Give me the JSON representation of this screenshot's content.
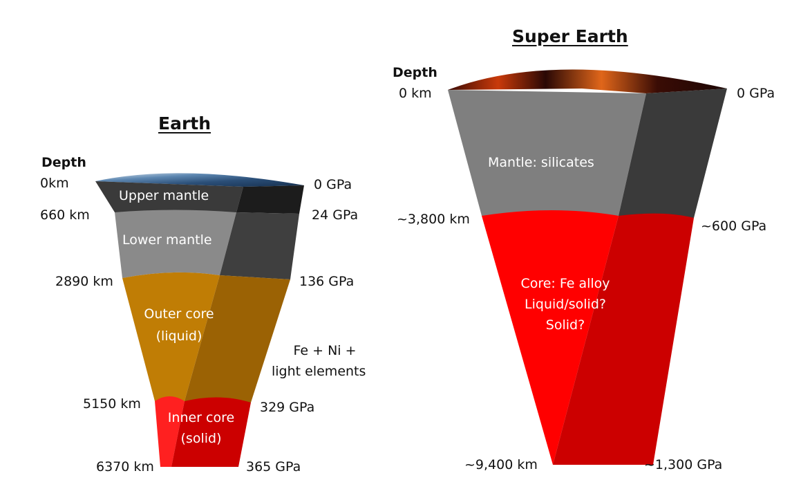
{
  "earth": {
    "title": "Earth",
    "depth_label": "Depth",
    "depths": [
      "0km",
      "660 km",
      "2890 km",
      "5150 km",
      "6370 km"
    ],
    "pressures": [
      "0 GPa",
      "24 GPa",
      "136 GPa",
      "329 GPa",
      "365 GPa"
    ],
    "layers": {
      "upper_mantle": "Upper mantle",
      "lower_mantle": "Lower mantle",
      "outer_core_line1": "Outer core",
      "outer_core_line2": "(liquid)",
      "inner_core_line1": "Inner core",
      "inner_core_line2": "(solid)"
    },
    "composition_line1": "Fe + Ni +",
    "composition_line2": "light elements",
    "colors": {
      "upper_mantle": "#3a3a3a",
      "lower_mantle": "#8a8a8a",
      "outer_core": "#c07d05",
      "inner_core": "#ee1111"
    }
  },
  "super_earth": {
    "title": "Super Earth",
    "depth_label": "Depth",
    "depths": [
      "0 km",
      "~3,800 km",
      "~9,400 km"
    ],
    "pressures": [
      "0 GPa",
      "~600 GPa",
      "~1,300 GPa"
    ],
    "layers": {
      "mantle": "Mantle: silicates",
      "core_line1": "Core: Fe alloy",
      "core_line2": "Liquid/solid?",
      "core_line3": "Solid?"
    },
    "colors": {
      "mantle": "#7f7f7f",
      "core": "#ff0000"
    }
  }
}
